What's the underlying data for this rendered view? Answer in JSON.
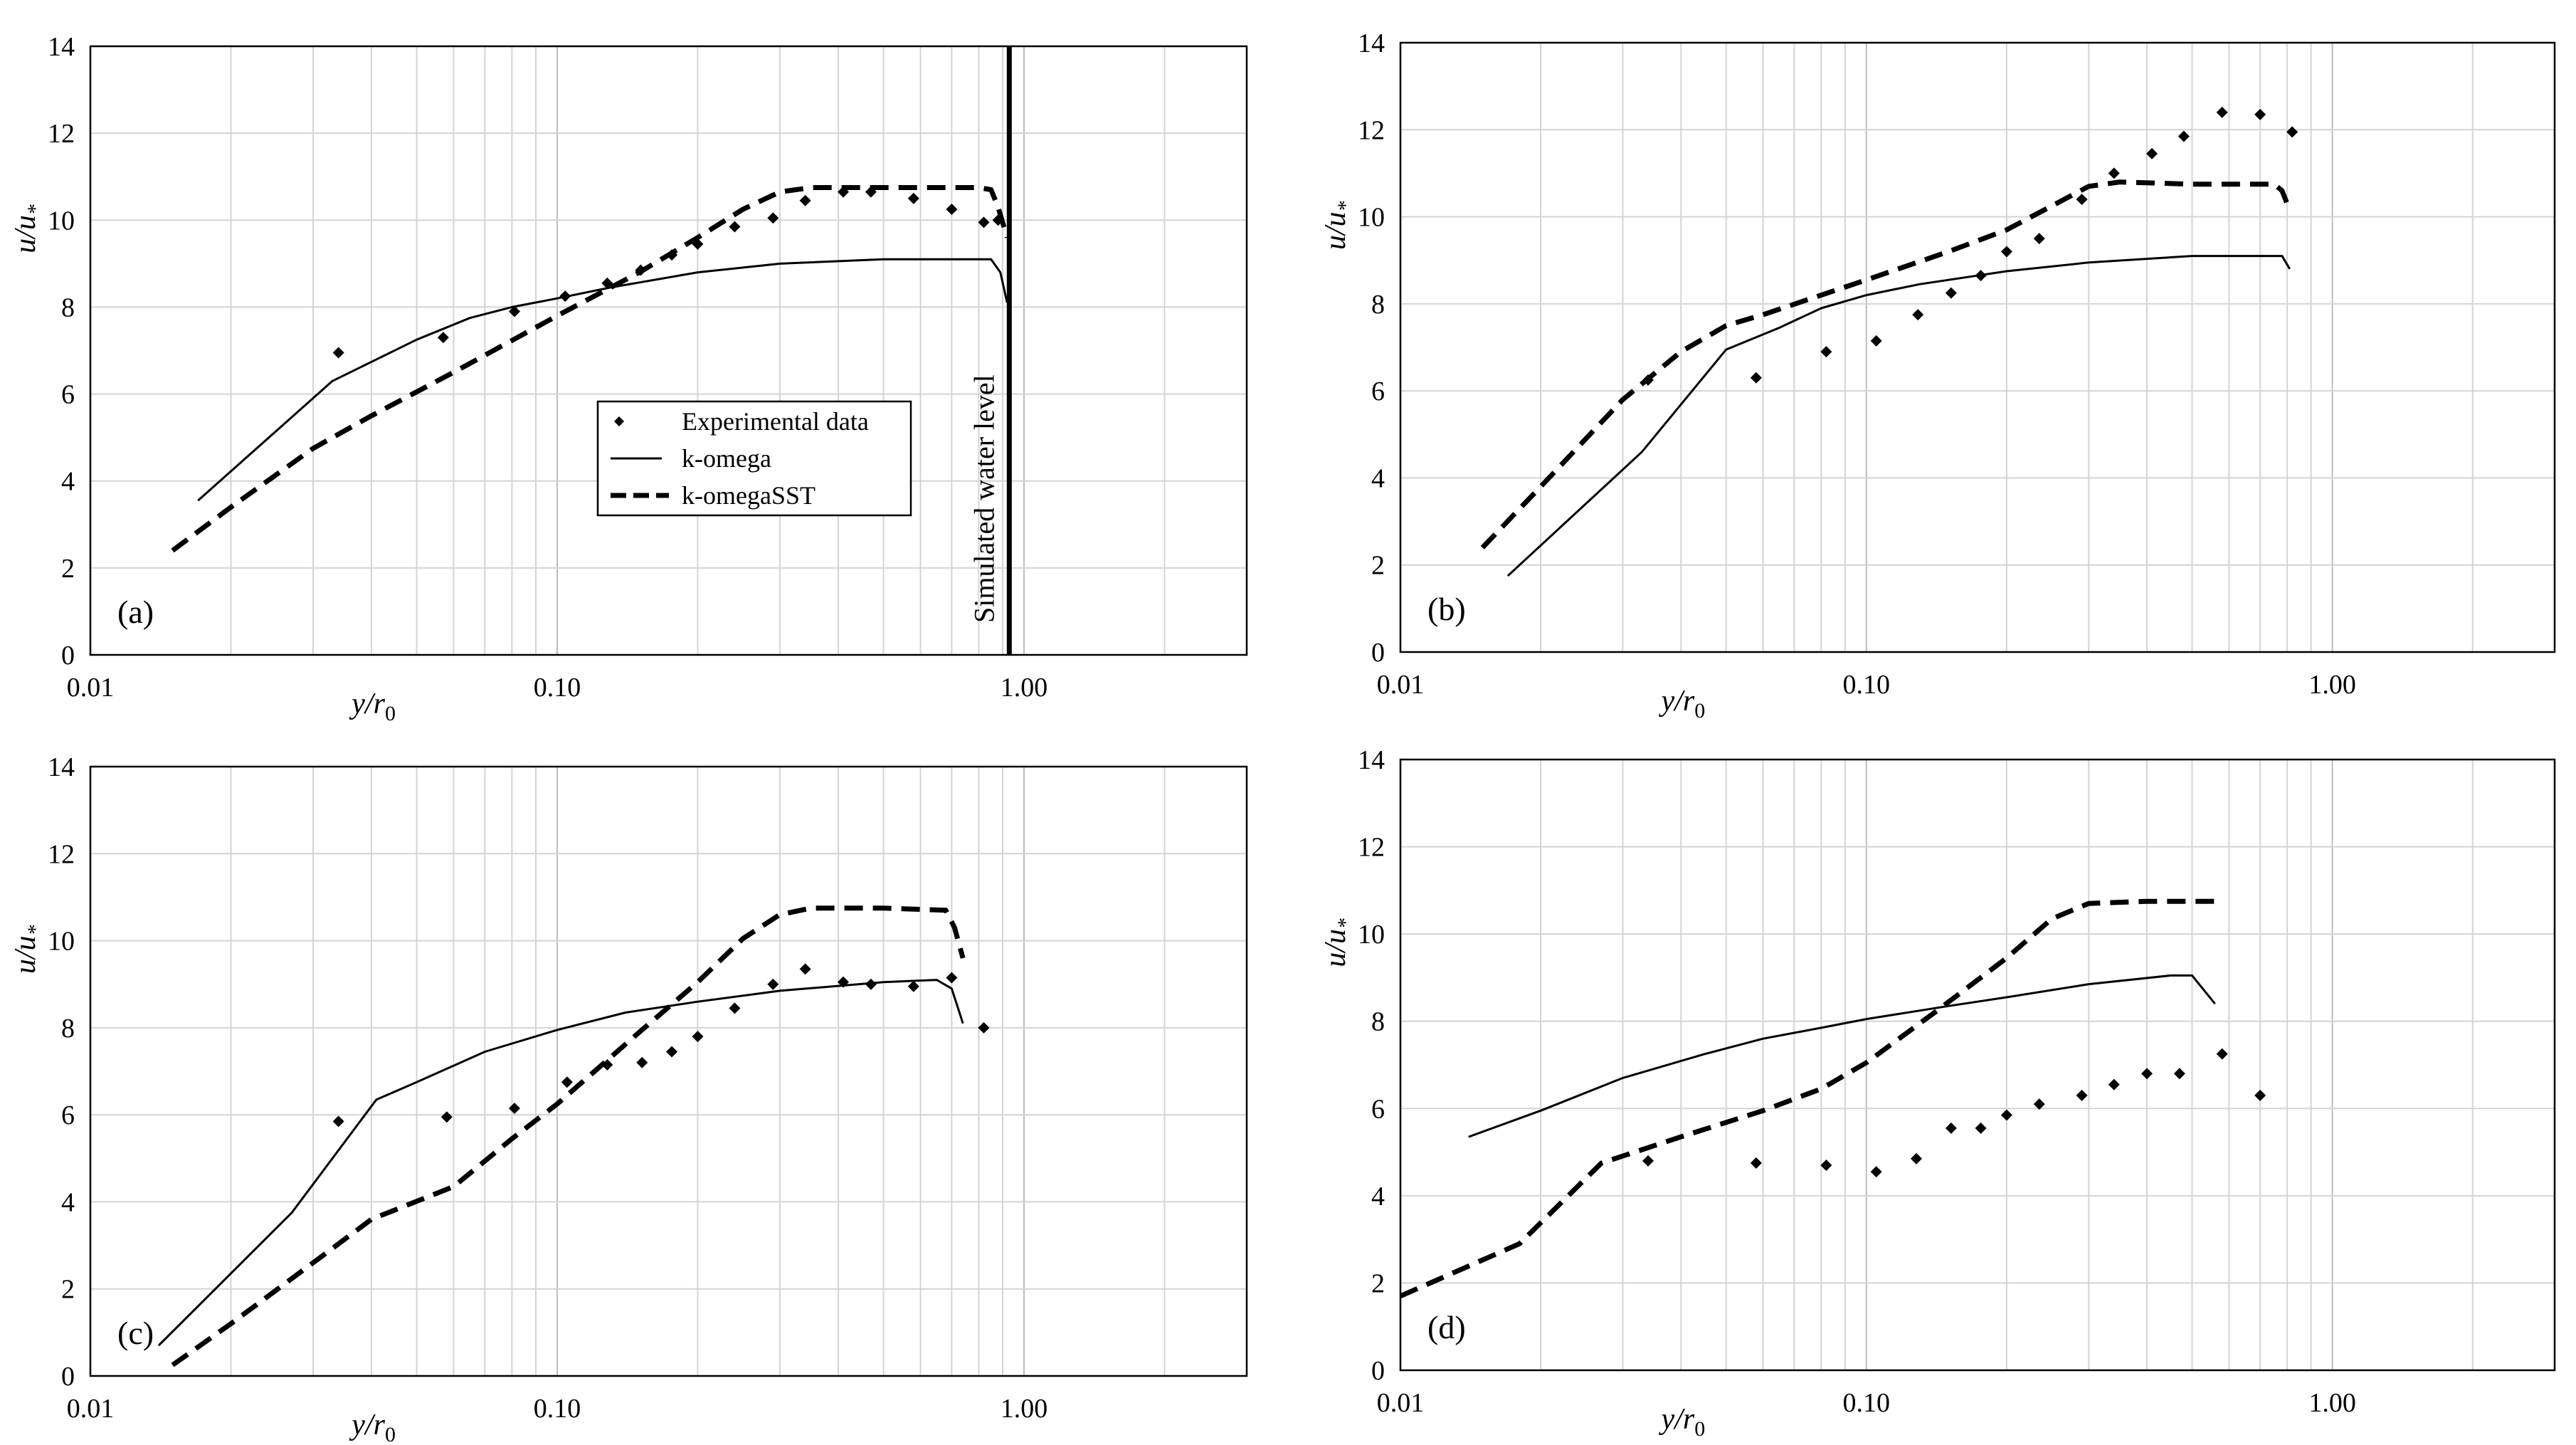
{
  "figure": {
    "ylabel": "u/u",
    "ylabel_sub": "*",
    "xlabel": "y/r",
    "xlabel_sub": "0",
    "legend": {
      "exp": "Experimental data",
      "ko": "k-omega",
      "sst": "k-omegaSST"
    }
  },
  "chart_data": [
    {
      "panel": "(a)",
      "type": "line",
      "xscale": "log",
      "xlim": [
        0.01,
        3.0
      ],
      "ylim": [
        0,
        14
      ],
      "yticks": [
        "0",
        "2",
        "4",
        "6",
        "8",
        "10",
        "12",
        "14"
      ],
      "xticks": [
        "0.01",
        "0.10",
        "1.00"
      ],
      "annotation": "Simulated water level",
      "water_level_x": 0.93,
      "series": [
        {
          "name": "Experimental data",
          "style": "markers",
          "x": [
            0.034,
            0.057,
            0.081,
            0.104,
            0.128,
            0.151,
            0.176,
            0.2,
            0.24,
            0.29,
            0.34,
            0.41,
            0.47,
            0.58,
            0.7,
            0.82,
            0.88
          ],
          "y": [
            6.95,
            7.3,
            7.9,
            8.25,
            8.55,
            8.85,
            9.2,
            9.45,
            9.85,
            10.05,
            10.45,
            10.65,
            10.65,
            10.5,
            10.25,
            9.95,
            10.0
          ]
        },
        {
          "name": "k-omega",
          "style": "solid",
          "x": [
            0.017,
            0.033,
            0.05,
            0.065,
            0.08,
            0.1,
            0.13,
            0.2,
            0.3,
            0.5,
            0.85,
            0.89,
            0.92
          ],
          "y": [
            3.55,
            6.3,
            7.25,
            7.75,
            8.0,
            8.2,
            8.45,
            8.8,
            9.0,
            9.1,
            9.1,
            8.8,
            8.1
          ]
        },
        {
          "name": "k-omegaSST",
          "style": "dashed",
          "x": [
            0.015,
            0.02,
            0.03,
            0.04,
            0.06,
            0.1,
            0.15,
            0.2,
            0.25,
            0.3,
            0.35,
            0.5,
            0.8,
            0.85,
            0.88,
            0.92
          ],
          "y": [
            2.4,
            3.4,
            4.75,
            5.5,
            6.5,
            7.8,
            8.8,
            9.6,
            10.25,
            10.65,
            10.75,
            10.75,
            10.75,
            10.7,
            10.3,
            9.6
          ]
        }
      ]
    },
    {
      "panel": "(b)",
      "type": "line",
      "xscale": "log",
      "xlim": [
        0.01,
        3.0
      ],
      "ylim": [
        0,
        14
      ],
      "yticks": [
        "0",
        "2",
        "4",
        "6",
        "8",
        "10",
        "12",
        "14"
      ],
      "xticks": [
        "0.01",
        "0.10",
        "1.00"
      ],
      "series": [
        {
          "name": "Experimental data",
          "style": "markers",
          "x": [
            0.034,
            0.058,
            0.082,
            0.105,
            0.129,
            0.152,
            0.176,
            0.2,
            0.235,
            0.29,
            0.34,
            0.41,
            0.48,
            0.58,
            0.7,
            0.82
          ],
          "y": [
            6.25,
            6.3,
            6.9,
            7.15,
            7.75,
            8.25,
            8.65,
            9.2,
            9.5,
            10.4,
            11.0,
            11.45,
            11.85,
            12.4,
            12.35,
            11.95
          ]
        },
        {
          "name": "k-omega",
          "style": "solid",
          "x": [
            0.017,
            0.033,
            0.05,
            0.065,
            0.08,
            0.1,
            0.13,
            0.2,
            0.3,
            0.5,
            0.78,
            0.81
          ],
          "y": [
            1.75,
            4.6,
            6.95,
            7.45,
            7.9,
            8.2,
            8.45,
            8.75,
            8.95,
            9.1,
            9.1,
            8.8
          ]
        },
        {
          "name": "k-omegaSST",
          "style": "dashed",
          "x": [
            0.015,
            0.02,
            0.03,
            0.04,
            0.05,
            0.06,
            0.1,
            0.15,
            0.2,
            0.3,
            0.35,
            0.5,
            0.75,
            0.78,
            0.8
          ],
          "y": [
            2.4,
            3.8,
            5.8,
            6.9,
            7.5,
            7.75,
            8.55,
            9.2,
            9.7,
            10.7,
            10.8,
            10.75,
            10.75,
            10.6,
            10.3
          ]
        }
      ]
    },
    {
      "panel": "(c)",
      "type": "line",
      "xscale": "log",
      "xlim": [
        0.01,
        3.0
      ],
      "ylim": [
        0,
        14
      ],
      "yticks": [
        "0",
        "2",
        "4",
        "6",
        "8",
        "10",
        "12",
        "14"
      ],
      "xticks": [
        "0.01",
        "0.10",
        "1.00"
      ],
      "series": [
        {
          "name": "Experimental data",
          "style": "markers",
          "x": [
            0.034,
            0.058,
            0.081,
            0.105,
            0.128,
            0.152,
            0.176,
            0.2,
            0.24,
            0.29,
            0.34,
            0.41,
            0.47,
            0.58,
            0.7,
            0.82
          ],
          "y": [
            5.85,
            5.95,
            6.15,
            6.75,
            7.15,
            7.2,
            7.45,
            7.8,
            8.45,
            9.0,
            9.35,
            9.05,
            9.0,
            8.95,
            9.15,
            8.0
          ]
        },
        {
          "name": "k-omega",
          "style": "solid",
          "x": [
            0.014,
            0.027,
            0.041,
            0.05,
            0.07,
            0.1,
            0.14,
            0.2,
            0.3,
            0.5,
            0.65,
            0.7,
            0.74
          ],
          "y": [
            0.7,
            3.75,
            6.35,
            6.75,
            7.45,
            7.95,
            8.35,
            8.6,
            8.85,
            9.05,
            9.1,
            8.9,
            8.1
          ]
        },
        {
          "name": "k-omegaSST",
          "style": "dashed",
          "x": [
            0.015,
            0.02,
            0.03,
            0.04,
            0.06,
            0.08,
            0.1,
            0.15,
            0.2,
            0.25,
            0.3,
            0.35,
            0.5,
            0.68,
            0.71,
            0.74
          ],
          "y": [
            0.25,
            1.2,
            2.6,
            3.6,
            4.35,
            5.45,
            6.25,
            7.9,
            9.05,
            10.05,
            10.6,
            10.75,
            10.75,
            10.7,
            10.3,
            9.6
          ]
        }
      ]
    },
    {
      "panel": "(d)",
      "type": "line",
      "xscale": "log",
      "xlim": [
        0.01,
        3.0
      ],
      "ylim": [
        0,
        14
      ],
      "yticks": [
        "0",
        "2",
        "4",
        "6",
        "8",
        "10",
        "12",
        "14"
      ],
      "xticks": [
        "0.01",
        "0.10",
        "1.00"
      ],
      "series": [
        {
          "name": "Experimental data",
          "style": "markers",
          "x": [
            0.034,
            0.058,
            0.082,
            0.105,
            0.128,
            0.152,
            0.176,
            0.2,
            0.235,
            0.29,
            0.34,
            0.4,
            0.47,
            0.58,
            0.7
          ],
          "y": [
            4.8,
            4.75,
            4.7,
            4.55,
            4.85,
            5.55,
            5.55,
            5.85,
            6.1,
            6.3,
            6.55,
            6.8,
            6.8,
            7.25,
            6.3
          ]
        },
        {
          "name": "k-omega",
          "style": "solid",
          "x": [
            0.014,
            0.02,
            0.03,
            0.045,
            0.06,
            0.08,
            0.1,
            0.15,
            0.2,
            0.3,
            0.45,
            0.5,
            0.56
          ],
          "y": [
            5.35,
            5.95,
            6.7,
            7.25,
            7.6,
            7.85,
            8.05,
            8.35,
            8.55,
            8.85,
            9.05,
            9.05,
            8.4
          ]
        },
        {
          "name": "k-omegaSST",
          "style": "dashed",
          "x": [
            0.01,
            0.018,
            0.027,
            0.04,
            0.06,
            0.08,
            0.1,
            0.14,
            0.2,
            0.25,
            0.3,
            0.4,
            0.58
          ],
          "y": [
            1.7,
            2.9,
            4.75,
            5.35,
            5.95,
            6.45,
            7.05,
            8.2,
            9.45,
            10.35,
            10.7,
            10.75,
            10.75
          ]
        }
      ]
    }
  ]
}
